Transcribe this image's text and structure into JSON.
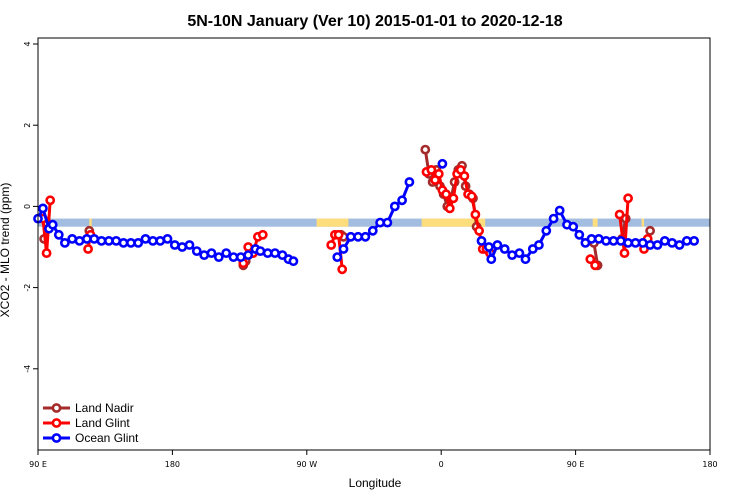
{
  "chart_data": {
    "type": "line",
    "title": "5N-10N January (Ver 10)   2015-01-01 to 2020-12-18",
    "xlabel": "Longitude",
    "ylabel": "XCO2 - MLO trend (ppm)",
    "xlim": [
      -90,
      180
    ],
    "ylim": [
      -6,
      4
    ],
    "x_ticks": [
      {
        "value": -90,
        "label": "90 E"
      },
      {
        "value": -35,
        "label": "180"
      },
      {
        "value": 20,
        "label": "90 W"
      },
      {
        "value": 75,
        "label": "0"
      },
      {
        "value": 130,
        "label": "90 E"
      },
      {
        "value": 185,
        "label": "180"
      }
    ],
    "y_ticks": [
      {
        "value": 4,
        "label": "4"
      },
      {
        "value": 2,
        "label": "2"
      },
      {
        "value": 0,
        "label": "0"
      },
      {
        "value": -2,
        "label": "-2"
      },
      {
        "value": -4,
        "label": "-4"
      }
    ],
    "legend_position": "bottom-left",
    "band": {
      "y_min": -0.5,
      "y_max": -0.3,
      "ocean_color": "#a3bde0",
      "land_color": "#fedd7d",
      "land_ranges": [
        [
          -88,
          -87
        ],
        [
          -69,
          -68
        ],
        [
          24,
          37
        ],
        [
          67,
          93
        ],
        [
          137,
          139
        ],
        [
          157,
          158
        ]
      ]
    },
    "series": [
      {
        "name": "Land Nadir",
        "color": "#a52a2a",
        "segments": [
          [
            [
              -87.5,
              -0.8
            ],
            [
              -86.5,
              -0.4
            ]
          ],
          [
            [
              -70,
              -0.8
            ],
            [
              -69,
              -0.6
            ]
          ],
          [
            [
              -6,
              -1.45
            ],
            [
              -5,
              -1.35
            ]
          ],
          [
            [
              34,
              -0.7
            ],
            [
              35,
              -0.75
            ]
          ],
          [
            [
              68.5,
              1.4
            ],
            [
              70,
              0.8
            ],
            [
              71.5,
              0.6
            ],
            [
              73,
              0.9
            ],
            [
              74.5,
              0.5
            ],
            [
              76,
              0.3
            ],
            [
              77.5,
              0
            ],
            [
              79,
              0.2
            ],
            [
              80.5,
              0.6
            ],
            [
              82,
              0.9
            ],
            [
              83.5,
              1
            ],
            [
              85,
              0.5
            ],
            [
              86.5,
              0.3
            ],
            [
              88,
              0.2
            ],
            [
              89.5,
              -0.5
            ]
          ],
          [
            [
              93,
              -1.05
            ],
            [
              94.5,
              -1.1
            ]
          ],
          [
            [
              137.5,
              -0.9
            ],
            [
              139,
              -1.45
            ]
          ],
          [
            [
              149,
              -0.8
            ],
            [
              150.5,
              -0.3
            ]
          ],
          [
            [
              159,
              -0.9
            ],
            [
              160.5,
              -0.6
            ]
          ]
        ]
      },
      {
        "name": "Land Glint",
        "color": "#ff0000",
        "segments": [
          [
            [
              -88,
              -0.3
            ],
            [
              -86.5,
              -1.15
            ],
            [
              -85,
              0.15
            ]
          ],
          [
            [
              -69.5,
              -1.05
            ],
            [
              -68.5,
              -0.7
            ]
          ],
          [
            [
              -6,
              -1.4
            ],
            [
              -4,
              -1
            ],
            [
              -2,
              -1.15
            ],
            [
              0,
              -0.75
            ],
            [
              2,
              -0.7
            ]
          ],
          [
            [
              30,
              -0.95
            ],
            [
              31.5,
              -0.7
            ],
            [
              33,
              -0.7
            ],
            [
              34.5,
              -1.55
            ]
          ],
          [
            [
              69,
              0.85
            ],
            [
              71,
              0.9
            ],
            [
              72.5,
              0.65
            ],
            [
              74,
              0.8
            ],
            [
              75.5,
              0.4
            ],
            [
              77,
              0.3
            ],
            [
              78.5,
              -0.05
            ],
            [
              80,
              0.2
            ],
            [
              81.5,
              0.8
            ],
            [
              83,
              0.9
            ],
            [
              84.5,
              0.75
            ],
            [
              86,
              0.3
            ],
            [
              87.5,
              0.25
            ],
            [
              89,
              -0.2
            ],
            [
              90.5,
              -0.6
            ],
            [
              92,
              -1.05
            ],
            [
              93.5,
              -1.05
            ],
            [
              95,
              -1.15
            ]
          ],
          [
            [
              136,
              -1.3
            ],
            [
              138,
              -1.45
            ]
          ],
          [
            [
              148,
              -0.2
            ],
            [
              150,
              -1.15
            ],
            [
              151.5,
              0.2
            ]
          ],
          [
            [
              158,
              -1.05
            ],
            [
              159.5,
              -0.8
            ]
          ]
        ]
      },
      {
        "name": "Ocean Glint",
        "color": "#0000ff",
        "segments": [
          [
            [
              -90,
              -0.3
            ],
            [
              -88,
              -0.05
            ],
            [
              -85.5,
              -0.55
            ],
            [
              -84,
              -0.45
            ],
            [
              -81.5,
              -0.7
            ],
            [
              -79,
              -0.9
            ],
            [
              -76,
              -0.8
            ],
            [
              -73,
              -0.85
            ],
            [
              -70,
              -0.8
            ],
            [
              -67,
              -0.8
            ],
            [
              -64,
              -0.85
            ],
            [
              -61,
              -0.85
            ],
            [
              -58,
              -0.85
            ],
            [
              -55,
              -0.9
            ],
            [
              -52,
              -0.9
            ],
            [
              -49,
              -0.9
            ],
            [
              -46,
              -0.8
            ],
            [
              -43,
              -0.85
            ],
            [
              -40,
              -0.85
            ],
            [
              -37,
              -0.8
            ],
            [
              -34,
              -0.95
            ],
            [
              -31,
              -1
            ],
            [
              -28,
              -0.95
            ],
            [
              -25,
              -1.1
            ],
            [
              -22,
              -1.2
            ],
            [
              -19,
              -1.15
            ],
            [
              -16,
              -1.25
            ],
            [
              -13,
              -1.15
            ],
            [
              -10,
              -1.25
            ],
            [
              -7,
              -1.25
            ],
            [
              -4,
              -1.2
            ],
            [
              -1,
              -1.05
            ],
            [
              1,
              -1.1
            ],
            [
              4,
              -1.15
            ],
            [
              7,
              -1.15
            ],
            [
              10,
              -1.2
            ],
            [
              12.5,
              -1.3
            ],
            [
              14.5,
              -1.35
            ]
          ],
          [
            [
              32.5,
              -1.25
            ],
            [
              35,
              -1.05
            ],
            [
              38,
              -0.75
            ],
            [
              41,
              -0.75
            ],
            [
              44,
              -0.75
            ],
            [
              47,
              -0.6
            ],
            [
              50,
              -0.4
            ],
            [
              53,
              -0.4
            ],
            [
              56,
              0
            ],
            [
              59,
              0.15
            ],
            [
              62,
              0.6
            ]
          ],
          [
            [
              75.5,
              1.05
            ]
          ],
          [
            [
              91.5,
              -0.85
            ],
            [
              94.5,
              -1
            ],
            [
              95.5,
              -1.3
            ],
            [
              98,
              -0.95
            ],
            [
              101,
              -1.05
            ],
            [
              104,
              -1.2
            ],
            [
              107,
              -1.15
            ],
            [
              109.5,
              -1.3
            ],
            [
              112.5,
              -1.05
            ],
            [
              115,
              -0.95
            ],
            [
              118,
              -0.6
            ],
            [
              121,
              -0.3
            ],
            [
              123.5,
              -0.1
            ],
            [
              126.5,
              -0.45
            ],
            [
              129,
              -0.5
            ],
            [
              131.5,
              -0.7
            ],
            [
              134,
              -0.9
            ],
            [
              136.5,
              -0.8
            ],
            [
              139.5,
              -0.8
            ],
            [
              142.5,
              -0.85
            ],
            [
              145.5,
              -0.85
            ],
            [
              148.5,
              -0.85
            ],
            [
              151.5,
              -0.9
            ],
            [
              154.5,
              -0.9
            ],
            [
              157.5,
              -0.9
            ],
            [
              160.5,
              -0.95
            ],
            [
              163.5,
              -0.95
            ],
            [
              166.5,
              -0.85
            ],
            [
              169.5,
              -0.9
            ],
            [
              172.5,
              -0.95
            ],
            [
              175.5,
              -0.85
            ],
            [
              178.5,
              -0.85
            ]
          ]
        ]
      }
    ]
  }
}
